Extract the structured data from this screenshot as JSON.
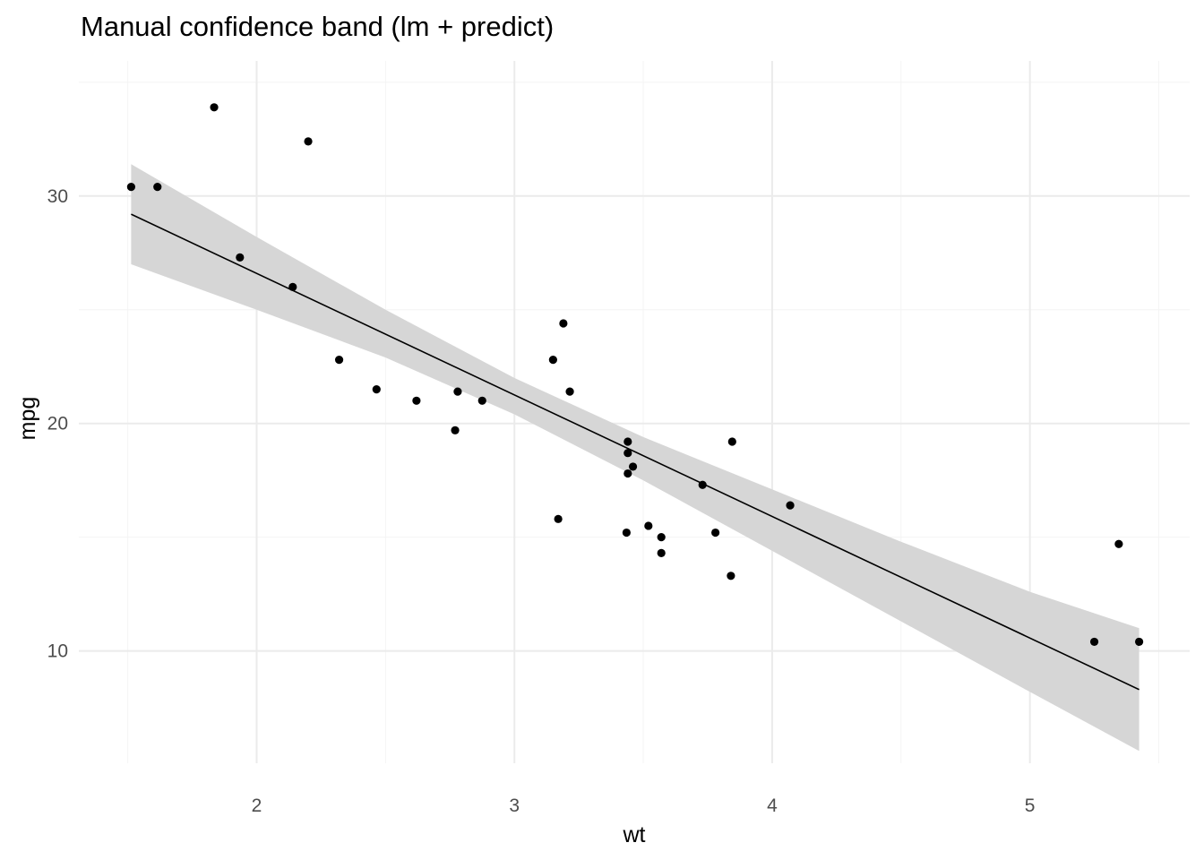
{
  "chart_data": {
    "type": "scatter",
    "title": "Manual confidence band (lm + predict)",
    "xlabel": "wt",
    "ylabel": "mpg",
    "xlim": [
      1.31,
      5.62
    ],
    "ylim": [
      5.06,
      35.94
    ],
    "x_ticks": [
      2,
      3,
      4,
      5
    ],
    "y_ticks": [
      10,
      20,
      30
    ],
    "grid": true,
    "legend": "none",
    "points": [
      [
        2.62,
        21.0
      ],
      [
        2.875,
        21.0
      ],
      [
        2.32,
        22.8
      ],
      [
        3.215,
        21.4
      ],
      [
        3.44,
        18.7
      ],
      [
        3.46,
        18.1
      ],
      [
        3.57,
        14.3
      ],
      [
        3.19,
        24.4
      ],
      [
        3.15,
        22.8
      ],
      [
        3.44,
        19.2
      ],
      [
        3.44,
        17.8
      ],
      [
        4.07,
        16.4
      ],
      [
        3.73,
        17.3
      ],
      [
        3.78,
        15.2
      ],
      [
        5.25,
        10.4
      ],
      [
        5.424,
        10.4
      ],
      [
        5.345,
        14.7
      ],
      [
        2.2,
        32.4
      ],
      [
        1.615,
        30.4
      ],
      [
        1.835,
        33.9
      ],
      [
        2.465,
        21.5
      ],
      [
        3.52,
        15.5
      ],
      [
        3.435,
        15.2
      ],
      [
        3.84,
        13.3
      ],
      [
        3.845,
        19.2
      ],
      [
        1.935,
        27.3
      ],
      [
        2.14,
        26.0
      ],
      [
        1.513,
        30.4
      ],
      [
        3.17,
        15.8
      ],
      [
        2.77,
        19.7
      ],
      [
        3.57,
        15.0
      ],
      [
        2.78,
        21.4
      ]
    ],
    "fit_line": [
      [
        1.513,
        29.2
      ],
      [
        5.424,
        8.3
      ]
    ],
    "band": [
      [
        1.513,
        27.0,
        31.4
      ],
      [
        2.0,
        25.0,
        28.2
      ],
      [
        2.5,
        22.9,
        25.0
      ],
      [
        3.0,
        20.4,
        22.0
      ],
      [
        3.5,
        17.5,
        19.4
      ],
      [
        4.0,
        14.4,
        17.1
      ],
      [
        4.5,
        11.3,
        14.8
      ],
      [
        5.0,
        8.2,
        12.6
      ],
      [
        5.424,
        5.6,
        11.0
      ]
    ],
    "colors": {
      "points": "#000000",
      "line": "#000000",
      "band": "#d6d6d6"
    }
  }
}
